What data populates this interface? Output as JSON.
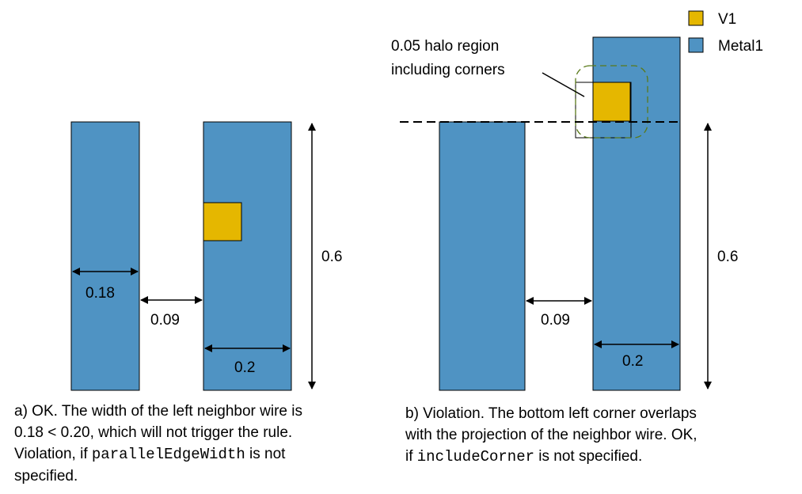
{
  "legend": {
    "v1_label": "V1",
    "metal1_label": "Metal1"
  },
  "colors": {
    "metal1": "#4f93c3",
    "v1": "#e5b700",
    "halo": "#5a7a1a"
  },
  "panel_a": {
    "width_label": "0.18",
    "spacing_label": "0.09",
    "length_label": "0.6",
    "wire_width_label": "0.2",
    "caption": {
      "line1": "a) OK. The width of the left neighbor wire is",
      "line2": "0.18 < 0.20, which will not trigger the rule.",
      "line3_prefix": "Violation, if ",
      "line3_code": "parallelEdgeWidth",
      "line3_suffix": " is not",
      "line4": "specified."
    }
  },
  "panel_b": {
    "halo_label_line1": "0.05 halo region",
    "halo_label_line2": "including corners",
    "spacing_label": "0.09",
    "length_label": "0.6",
    "wire_width_label": "0.2",
    "caption": {
      "line1": "b) Violation. The bottom left corner overlaps",
      "line2": "with the projection of the neighbor wire. OK,",
      "line3_prefix": "if ",
      "line3_code": "includeCorner",
      "line3_suffix": " is not specified."
    }
  }
}
